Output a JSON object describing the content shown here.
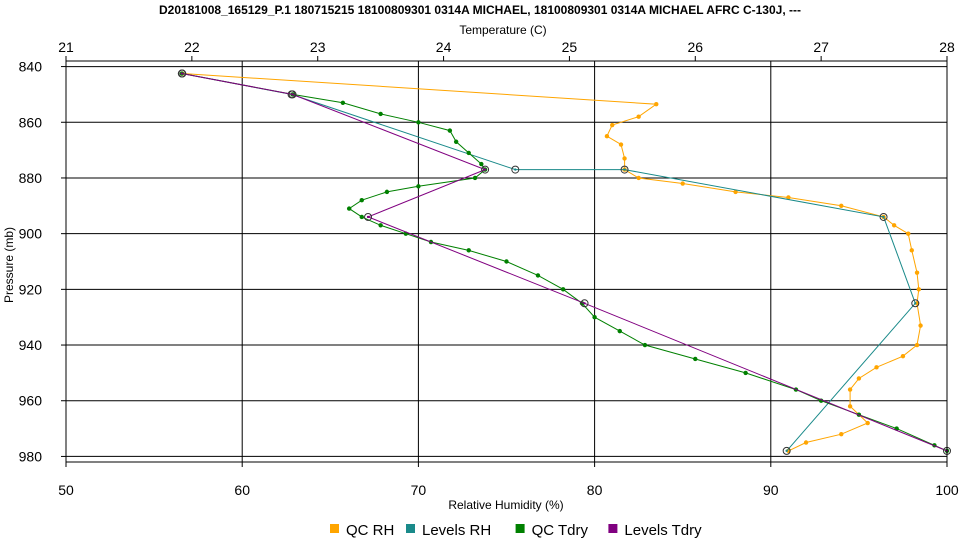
{
  "chart_data": {
    "type": "line",
    "title": "D20181008_165129_P.1 180715215 18100809301 0314A MICHAEL, 18100809301 0314A MICHAEL AFRC C-130J, ---",
    "top_xlabel": "Temperature (C)",
    "xlabel": "Relative Humidity (%)",
    "ylabel": "Pressure (mb)",
    "temp_range": [
      21,
      28
    ],
    "rh_range": [
      50,
      100
    ],
    "pressure_range": [
      838,
      982
    ],
    "temp_ticks": [
      "21",
      "22",
      "23",
      "24",
      "25",
      "26",
      "27",
      "28"
    ],
    "rh_ticks": [
      "50",
      "60",
      "70",
      "80",
      "90",
      "100"
    ],
    "pressure_ticks": [
      "840",
      "860",
      "880",
      "900",
      "920",
      "940",
      "960",
      "980"
    ],
    "grid": true,
    "legend_position": "bottom",
    "series": [
      {
        "name": "QC RH",
        "color": "#ffa500",
        "axis": "rh",
        "marker": "dots",
        "points": [
          [
            56.6,
            842.5
          ],
          [
            83.5,
            853.5
          ],
          [
            82.5,
            858
          ],
          [
            81,
            861
          ],
          [
            80.7,
            865
          ],
          [
            81.5,
            868
          ],
          [
            81.7,
            873
          ],
          [
            81.7,
            877
          ],
          [
            82.5,
            880
          ],
          [
            85,
            882
          ],
          [
            88,
            885
          ],
          [
            91,
            887
          ],
          [
            94,
            890
          ],
          [
            96.4,
            894
          ],
          [
            97,
            897
          ],
          [
            97.8,
            900
          ],
          [
            98,
            906
          ],
          [
            98.3,
            914
          ],
          [
            98.4,
            920
          ],
          [
            98.3,
            925
          ],
          [
            98.5,
            933
          ],
          [
            98.3,
            940
          ],
          [
            97.5,
            944
          ],
          [
            96,
            948
          ],
          [
            95,
            952
          ],
          [
            94.5,
            956
          ],
          [
            94.5,
            962
          ],
          [
            95.5,
            968
          ],
          [
            94,
            972
          ],
          [
            92,
            975
          ],
          [
            91,
            978
          ]
        ]
      },
      {
        "name": "Levels RH",
        "color": "#1a8a8a",
        "axis": "rh",
        "marker": "levels",
        "points": [
          [
            56.6,
            842.5
          ],
          [
            62.8,
            850
          ],
          [
            75.5,
            877
          ],
          [
            81.7,
            877
          ],
          [
            96.4,
            894
          ],
          [
            98.2,
            925
          ],
          [
            90.9,
            978
          ]
        ]
      },
      {
        "name": "QC Tdry",
        "color": "#008000",
        "axis": "temp",
        "marker": "dots",
        "points": [
          [
            21.92,
            842.5
          ],
          [
            22.8,
            850
          ],
          [
            23.2,
            853
          ],
          [
            23.5,
            857
          ],
          [
            23.8,
            860
          ],
          [
            24.05,
            863
          ],
          [
            24.1,
            867
          ],
          [
            24.2,
            871
          ],
          [
            24.3,
            875
          ],
          [
            24.33,
            877
          ],
          [
            24.25,
            880
          ],
          [
            23.8,
            883
          ],
          [
            23.55,
            885
          ],
          [
            23.35,
            888
          ],
          [
            23.25,
            891
          ],
          [
            23.35,
            894
          ],
          [
            23.5,
            897
          ],
          [
            23.7,
            900
          ],
          [
            23.9,
            903
          ],
          [
            24.2,
            906
          ],
          [
            24.5,
            910
          ],
          [
            24.75,
            915
          ],
          [
            24.95,
            920
          ],
          [
            25.1,
            925
          ],
          [
            25.2,
            930
          ],
          [
            25.4,
            935
          ],
          [
            25.6,
            940
          ],
          [
            26.0,
            945
          ],
          [
            26.4,
            950
          ],
          [
            26.8,
            956
          ],
          [
            27.0,
            960
          ],
          [
            27.3,
            965
          ],
          [
            27.6,
            970
          ],
          [
            27.9,
            976
          ],
          [
            28.0,
            978
          ]
        ]
      },
      {
        "name": "Levels Tdry",
        "color": "#800080",
        "axis": "temp",
        "marker": "levels",
        "points": [
          [
            21.92,
            842.5
          ],
          [
            22.8,
            850
          ],
          [
            24.33,
            877
          ],
          [
            23.4,
            894
          ],
          [
            25.12,
            925
          ],
          [
            28.0,
            978
          ]
        ]
      }
    ]
  }
}
